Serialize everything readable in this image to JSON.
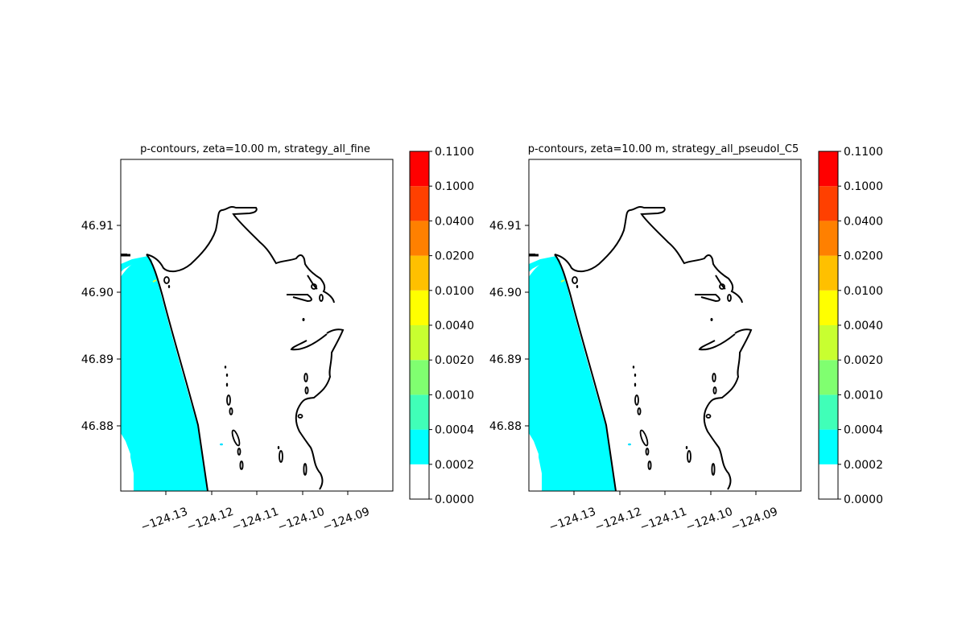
{
  "figure": {
    "background": "#ffffff"
  },
  "chart_data": [
    {
      "type": "heatmap",
      "title": "p-contours, zeta=10.00 m, strategy_all_fine",
      "x_ticks": [
        "−124.13",
        "−124.12",
        "−124.11",
        "−124.10",
        "−124.09"
      ],
      "x_tick_values": [
        -124.13,
        -124.12,
        -124.11,
        -124.1,
        -124.09
      ],
      "y_ticks": [
        "46.88",
        "46.89",
        "46.90",
        "46.91"
      ],
      "y_tick_values": [
        46.88,
        46.89,
        46.9,
        46.91
      ],
      "xlim": [
        -124.14,
        -124.08
      ],
      "ylim": [
        46.8705,
        46.92
      ],
      "colorbar": {
        "levels": [
          "0.0000",
          "0.0002",
          "0.0004",
          "0.0010",
          "0.0020",
          "0.0040",
          "0.0100",
          "0.0200",
          "0.0400",
          "0.1000",
          "0.1100"
        ],
        "colors": [
          "#ffffff",
          "#00ffff",
          "#40ffb8",
          "#80ff70",
          "#c8ff30",
          "#ffff00",
          "#ffc000",
          "#ff8000",
          "#ff4000",
          "#ff0000"
        ]
      },
      "filled_region_color": "#00ffff",
      "coastline_color": "#000000"
    },
    {
      "type": "heatmap",
      "title": "p-contours, zeta=10.00 m, strategy_all_pseudoI_C5",
      "x_ticks": [
        "−124.13",
        "−124.12",
        "−124.11",
        "−124.10",
        "−124.09"
      ],
      "x_tick_values": [
        -124.13,
        -124.12,
        -124.11,
        -124.1,
        -124.09
      ],
      "y_ticks": [
        "46.88",
        "46.89",
        "46.90",
        "46.91"
      ],
      "y_tick_values": [
        46.88,
        46.89,
        46.9,
        46.91
      ],
      "xlim": [
        -124.14,
        -124.08
      ],
      "ylim": [
        46.8705,
        46.92
      ],
      "colorbar": {
        "levels": [
          "0.0000",
          "0.0002",
          "0.0004",
          "0.0010",
          "0.0020",
          "0.0040",
          "0.0100",
          "0.0200",
          "0.0400",
          "0.1000",
          "0.1100"
        ],
        "colors": [
          "#ffffff",
          "#00ffff",
          "#40ffb8",
          "#80ff70",
          "#c8ff30",
          "#ffff00",
          "#ffc000",
          "#ff8000",
          "#ff4000",
          "#ff0000"
        ]
      },
      "filled_region_color": "#00ffff",
      "coastline_color": "#000000"
    }
  ]
}
